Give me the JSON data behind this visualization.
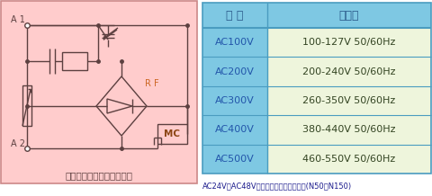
{
  "bg_color": "#FFCCCC",
  "table_header_bg": "#7EC8E3",
  "table_row_bg_left": "#7EC8E3",
  "table_row_bg_right": "#EEF5DC",
  "table_border_color": "#4A9CC0",
  "outer_border_color": "#CC8888",
  "circuit_color": "#5C4040",
  "rf_label_color": "#CC6622",
  "mc_label_color": "#8B4513",
  "header_col1": "呼 び",
  "header_col2": "定　格",
  "rows": [
    [
      "AC100V",
      "100-127V 50/60Hz"
    ],
    [
      "AC200V",
      "200-240V 50/60Hz"
    ],
    [
      "AC300V",
      "260-350V 50/60Hz"
    ],
    [
      "AC400V",
      "380-440V 50/60Hz"
    ],
    [
      "AC500V",
      "460-550V 50/60Hz"
    ]
  ],
  "footnote": "AC24V、AC48V定格も製作いたします。(N50～N150)",
  "caption": "（代表操作コイル回路図）",
  "label_A1": "A 1",
  "label_A2": "A 2",
  "label_RF": "R F",
  "label_MC": "MC",
  "fig_width": 4.81,
  "fig_height": 2.18,
  "dpi": 100
}
